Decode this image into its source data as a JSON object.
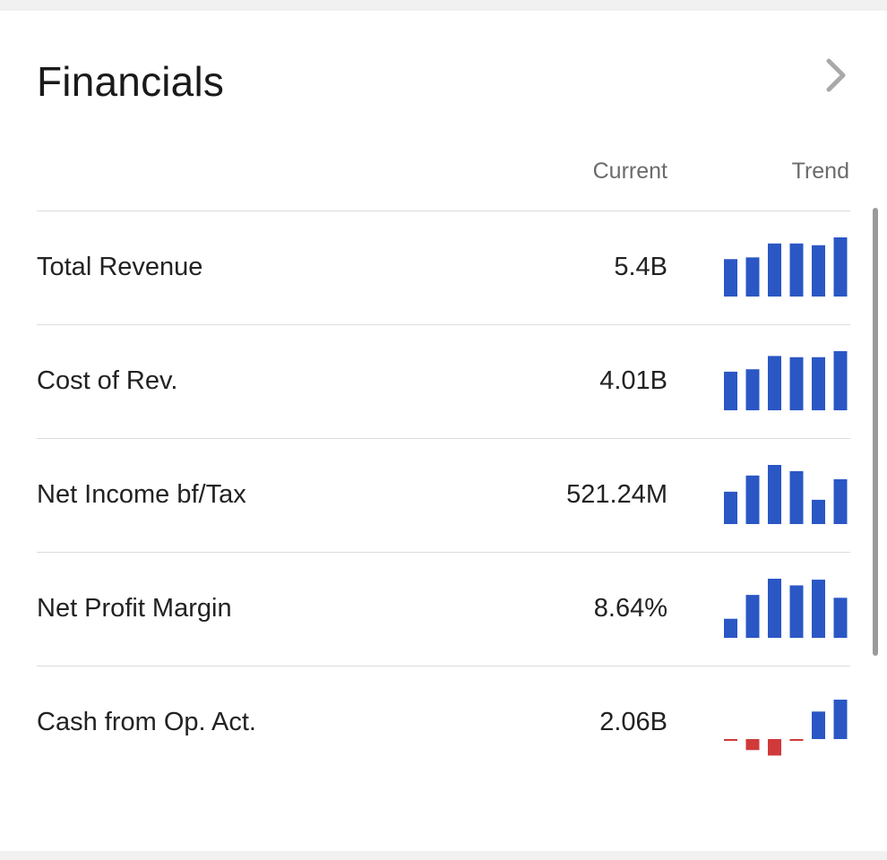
{
  "header": {
    "title": "Financials"
  },
  "columns": {
    "current": "Current",
    "trend": "Trend"
  },
  "colors": {
    "positive": "#2a57c4",
    "negative": "#d03a3a"
  },
  "rows": [
    {
      "label": "Total Revenue",
      "value": "5.4B",
      "trend": [
        4.3,
        4.5,
        6.1,
        6.1,
        5.9,
        6.8
      ]
    },
    {
      "label": "Cost of Rev.",
      "value": "4.01B",
      "trend": [
        3.2,
        3.4,
        4.5,
        4.4,
        4.4,
        4.9
      ]
    },
    {
      "label": "Net Income bf/Tax",
      "value": "521.24M",
      "trend": [
        0.52,
        0.78,
        0.95,
        0.85,
        0.39,
        0.72
      ]
    },
    {
      "label": "Net Profit Margin",
      "value": "8.64%",
      "trend": [
        2.0,
        4.5,
        6.2,
        5.5,
        6.1,
        4.2
      ]
    },
    {
      "label": "Cash from Op. Act.",
      "value": "2.06B",
      "trend": [
        -0.1,
        -1.2,
        -1.8,
        -0.1,
        3.0,
        4.3
      ]
    }
  ]
}
